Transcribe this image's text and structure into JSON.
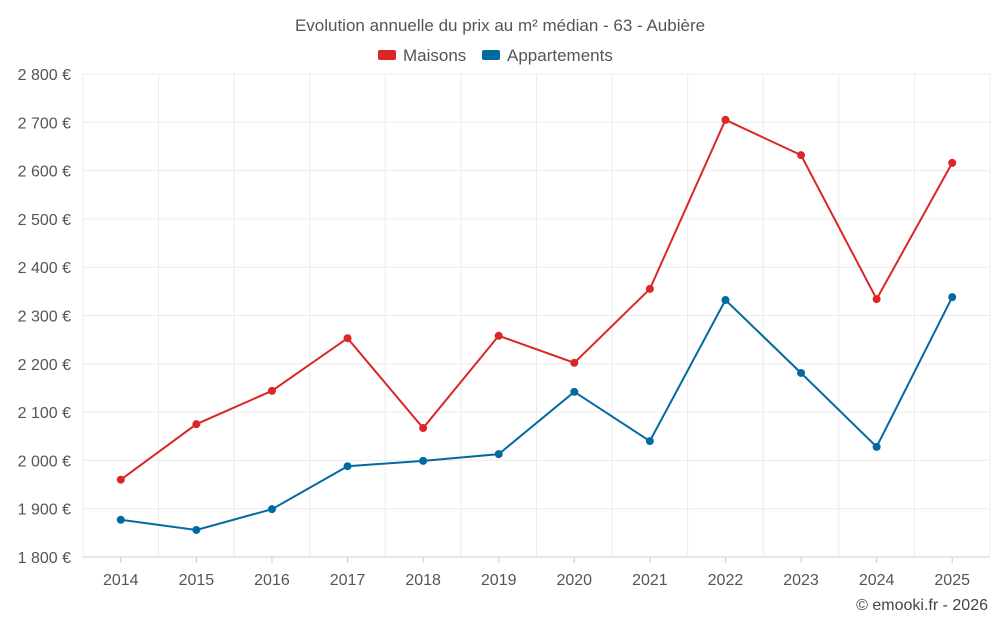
{
  "chart_data": {
    "type": "line",
    "title": "Evolution annuelle du prix au m² médian - 63 - Aubière",
    "categories": [
      "2014",
      "2015",
      "2016",
      "2017",
      "2018",
      "2019",
      "2020",
      "2021",
      "2022",
      "2023",
      "2024",
      "2025"
    ],
    "series": [
      {
        "name": "Maisons",
        "color": "#dc2626",
        "values": [
          1960,
          2075,
          2144,
          2253,
          2067,
          2258,
          2202,
          2355,
          2705,
          2632,
          2334,
          2616
        ]
      },
      {
        "name": "Appartements",
        "color": "#0369a1",
        "values": [
          1877,
          1856,
          1899,
          1988,
          1999,
          2013,
          2142,
          2040,
          2332,
          2181,
          2028,
          2338
        ]
      }
    ],
    "ylim": [
      1800,
      2800
    ],
    "yticks": [
      1800,
      1900,
      2000,
      2100,
      2200,
      2300,
      2400,
      2500,
      2600,
      2700,
      2800
    ],
    "ytick_labels": [
      "1 800 €",
      "1 900 €",
      "2 000 €",
      "2 100 €",
      "2 200 €",
      "2 300 €",
      "2 400 €",
      "2 500 €",
      "2 600 €",
      "2 700 €",
      "2 800 €"
    ],
    "xlabel": "",
    "ylabel": "",
    "grid": true,
    "legend": "top-center",
    "credit": "© emooki.fr - 2026"
  }
}
